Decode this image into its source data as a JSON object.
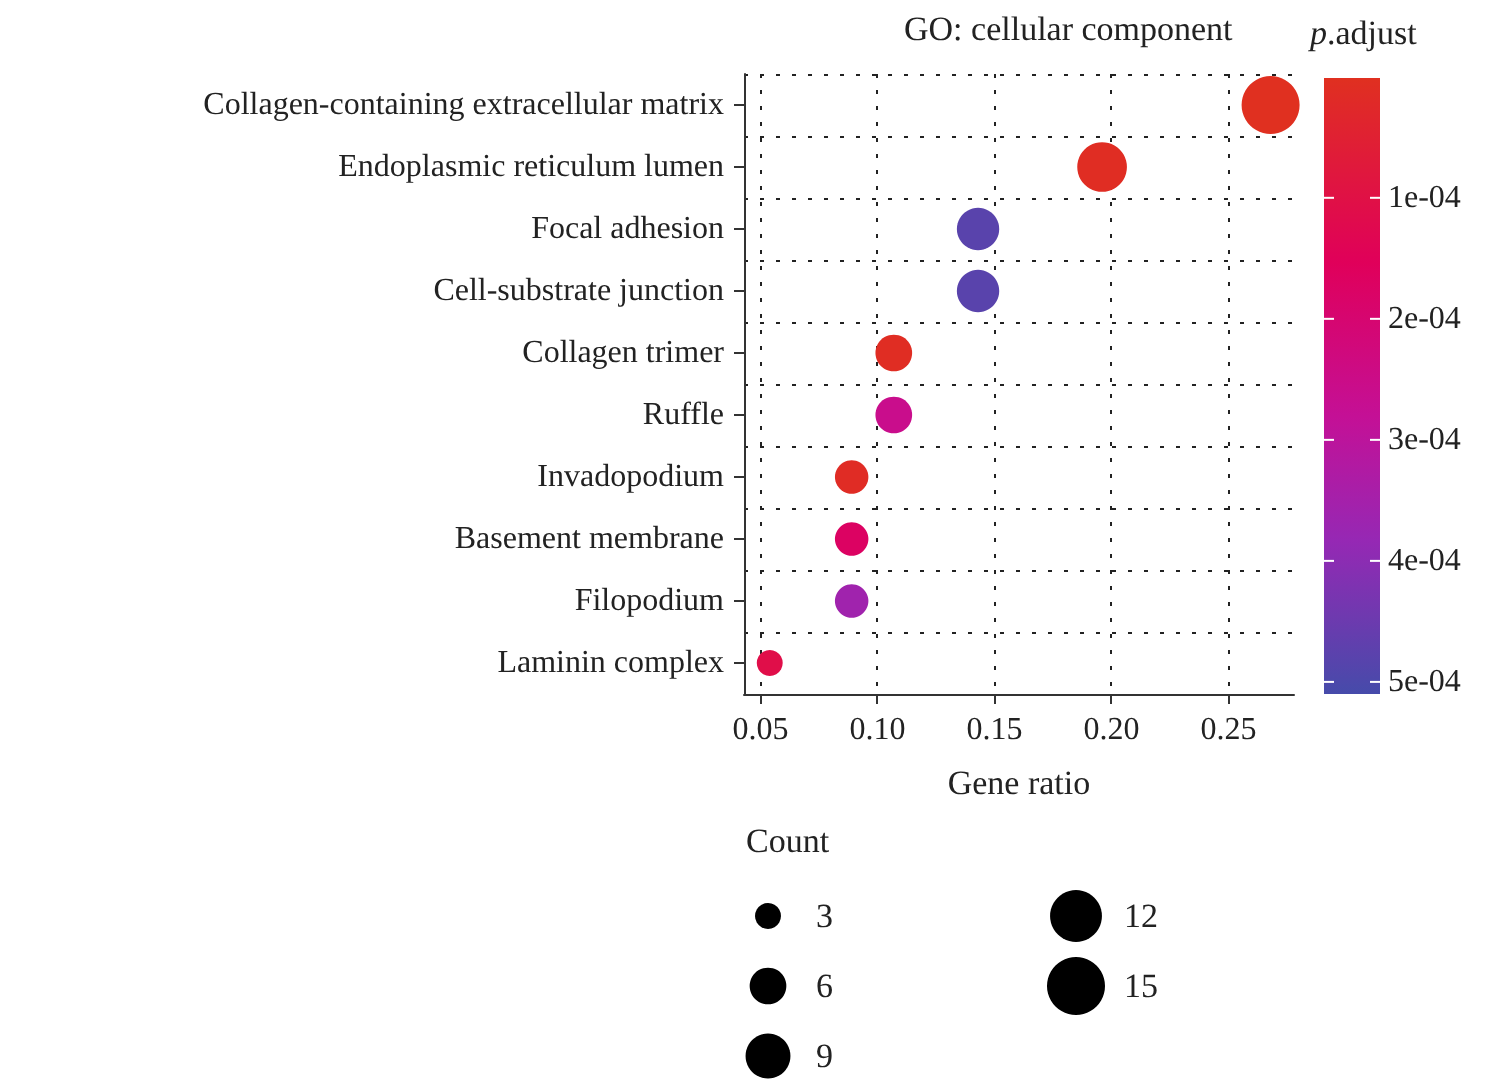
{
  "chart_data": {
    "type": "bubble",
    "title": "GO: cellular component",
    "xlabel": "Gene ratio",
    "legend_title": "Count",
    "clabel": "p.adjust",
    "orientation": "horizontal",
    "categories": [
      "Collagen-containing extracellular matrix",
      "Endoplasmic reticulum lumen",
      "Focal adhesion",
      "Cell-substrate junction",
      "Collagen trimer",
      "Ruffle",
      "Invadopodium",
      "Basement membrane",
      "Filopodium",
      "Laminin complex"
    ],
    "values": [
      0.268,
      0.196,
      0.143,
      0.143,
      0.107,
      0.107,
      0.089,
      0.089,
      0.089,
      0.054
    ],
    "sizes": [
      15,
      11,
      8,
      8,
      6,
      6,
      5,
      5,
      5,
      3
    ],
    "size_legend": [
      3,
      6,
      9,
      12,
      15
    ],
    "cvalues": [
      2e-06,
      1e-05,
      0.00048,
      0.00048,
      1e-05,
      0.00026,
      1.5e-05,
      0.00017,
      0.00036,
      0.00011
    ],
    "clim": [
      1e-06,
      0.00051
    ],
    "cticks": [
      {
        "value": 0.0001,
        "label": "1e-04"
      },
      {
        "value": 0.0002,
        "label": "2e-04"
      },
      {
        "value": 0.0003,
        "label": "3e-04"
      },
      {
        "value": 0.0004,
        "label": "4e-04"
      },
      {
        "value": 0.0005,
        "label": "5e-04"
      }
    ],
    "xlim": [
      0.043,
      0.278
    ],
    "xticks": [
      {
        "value": 0.05,
        "label": "0.05"
      },
      {
        "value": 0.1,
        "label": "0.10"
      },
      {
        "value": 0.15,
        "label": "0.15"
      },
      {
        "value": 0.2,
        "label": "0.20"
      },
      {
        "value": 0.25,
        "label": "0.25"
      }
    ],
    "grid": true
  }
}
